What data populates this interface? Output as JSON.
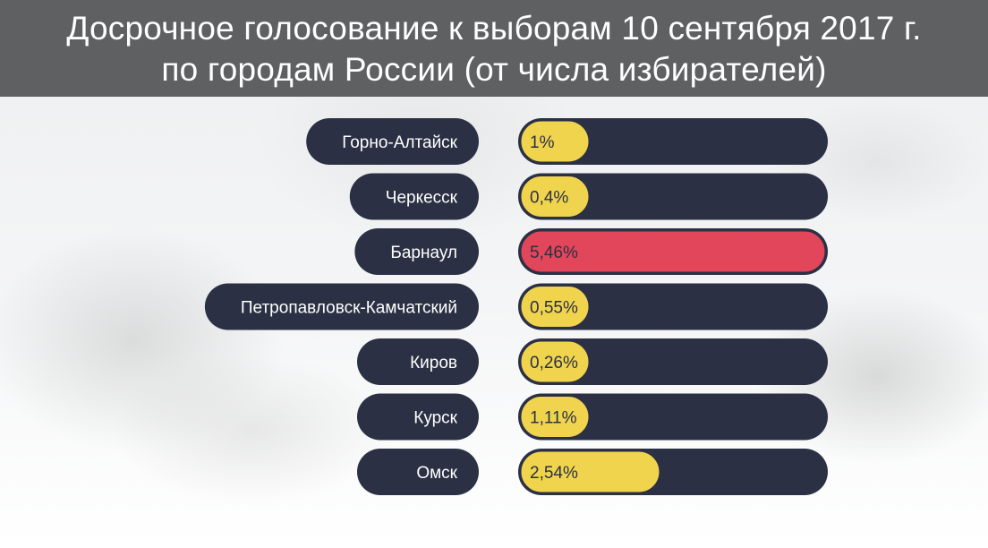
{
  "header": {
    "title_line1": "Досрочное голосование к выборам 10 сентября 2017 г.",
    "title_line2": "по городам России (от числа избирателей)"
  },
  "colors": {
    "header_bg": "#5f6062",
    "pill_dark": "#2b3044",
    "bar_yellow": "#f0d44d",
    "bar_red": "#e2465a",
    "label_text": "#ffffff",
    "value_text": "#2b3044"
  },
  "chart_data": {
    "type": "bar",
    "orientation": "horizontal",
    "title": "Досрочное голосование к выборам 10 сентября 2017 г. по городам России (от числа избирателей)",
    "categories": [
      "Горно-Алтайск",
      "Черкесск",
      "Барнаул",
      "Петропавловск-Камчатский",
      "Киров",
      "Курск",
      "Омск"
    ],
    "values": [
      1,
      0.4,
      5.46,
      0.55,
      0.26,
      1.11,
      2.54
    ],
    "value_labels": [
      "1%",
      "0,4%",
      "5,46%",
      "0,55%",
      "0,26%",
      "1,11%",
      "2,54%"
    ],
    "highlight_index": 2,
    "unit": "%",
    "xlim": [
      0,
      5.46
    ]
  }
}
